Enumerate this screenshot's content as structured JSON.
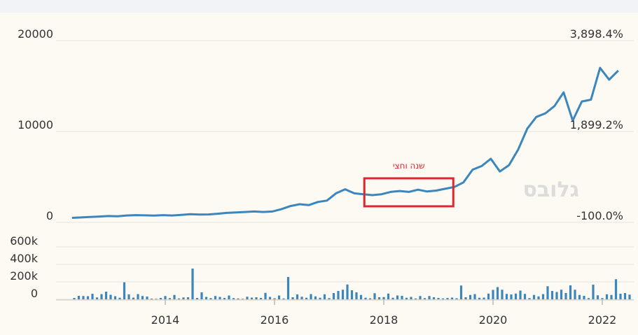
{
  "chart_data": [
    {
      "type": "line",
      "x_axis_type": "date",
      "ylim": [
        0,
        20000
      ],
      "y_ticks": [
        "20000",
        "10000",
        "0"
      ],
      "right_ticks": [
        "3,898.4%",
        "1,899.2%",
        "-100.0%"
      ],
      "annotation": {
        "label": "שנה וחצי",
        "x_start": "2017-09",
        "x_end": "2019-03",
        "color": "#e0262c"
      },
      "watermark": "גלובס",
      "line_color": "#3a86bd",
      "grid": true,
      "series": [
        {
          "x": [
            "2012-04",
            "2012-06",
            "2012-08",
            "2012-10",
            "2012-12",
            "2013-02",
            "2013-04",
            "2013-06",
            "2013-08",
            "2013-10",
            "2013-12",
            "2014-02",
            "2014-04",
            "2014-06",
            "2014-08",
            "2014-10",
            "2014-12",
            "2015-02",
            "2015-04",
            "2015-06",
            "2015-08",
            "2015-10",
            "2015-12",
            "2016-02",
            "2016-04",
            "2016-06",
            "2016-08",
            "2016-10",
            "2016-12",
            "2017-02",
            "2017-04",
            "2017-06",
            "2017-08",
            "2017-10",
            "2017-12",
            "2018-02",
            "2018-04",
            "2018-06",
            "2018-08",
            "2018-10",
            "2018-12",
            "2019-02",
            "2019-04",
            "2019-06",
            "2019-08",
            "2019-10",
            "2019-12",
            "2020-02",
            "2020-04",
            "2020-06",
            "2020-08",
            "2020-10",
            "2020-12",
            "2021-02",
            "2021-04",
            "2021-06",
            "2021-08",
            "2021-10",
            "2021-12",
            "2022-02",
            "2022-04"
          ],
          "y": [
            500,
            550,
            600,
            650,
            700,
            680,
            760,
            800,
            780,
            750,
            800,
            760,
            820,
            900,
            860,
            880,
            950,
            1050,
            1100,
            1150,
            1200,
            1150,
            1200,
            1450,
            1800,
            2000,
            1900,
            2250,
            2400,
            3200,
            3650,
            3200,
            3100,
            3000,
            3100,
            3350,
            3450,
            3350,
            3600,
            3400,
            3500,
            3700,
            3900,
            4400,
            5800,
            6200,
            7000,
            5600,
            6300,
            8000,
            10300,
            11600,
            12000,
            12800,
            14300,
            11200,
            13300,
            13500,
            17000,
            15700,
            16700
          ]
        }
      ]
    },
    {
      "type": "bar",
      "x_axis_type": "date",
      "ylim": [
        0,
        600000
      ],
      "y_ticks": [
        "600k",
        "400k",
        "200k",
        "0"
      ],
      "x_ticks": [
        "2014",
        "2016",
        "2018",
        "2020",
        "2022"
      ],
      "bar_color": "#3a86bd",
      "grid": true,
      "x_start": "2012-05",
      "step_months": 1,
      "values": [
        16000,
        40000,
        38000,
        36000,
        64000,
        22000,
        60000,
        88000,
        52000,
        36000,
        18000,
        195000,
        56000,
        20000,
        60000,
        38000,
        32000,
        8000,
        6000,
        16000,
        38000,
        14000,
        50000,
        10000,
        22000,
        24000,
        352000,
        16000,
        80000,
        28000,
        14000,
        38000,
        28000,
        16000,
        44000,
        14000,
        10000,
        6000,
        30000,
        20000,
        24000,
        16000,
        74000,
        28000,
        12000,
        44000,
        10000,
        256000,
        24000,
        56000,
        30000,
        18000,
        60000,
        34000,
        18000,
        58000,
        14000,
        72000,
        96000,
        110000,
        170000,
        104000,
        80000,
        50000,
        18000,
        12000,
        70000,
        24000,
        26000,
        66000,
        18000,
        44000,
        40000,
        18000,
        28000,
        10000,
        38000,
        14000,
        38000,
        24000,
        16000,
        10000,
        16000,
        20000,
        12000,
        158000,
        24000,
        50000,
        60000,
        18000,
        20000,
        66000,
        108000,
        140000,
        110000,
        62000,
        56000,
        66000,
        100000,
        62000,
        14000,
        50000,
        34000,
        60000,
        150000,
        96000,
        84000,
        110000,
        72000,
        160000,
        110000,
        50000,
        40000,
        14000,
        168000,
        46000,
        14000,
        58000,
        50000,
        230000,
        64000,
        72000,
        54000
      ]
    }
  ]
}
